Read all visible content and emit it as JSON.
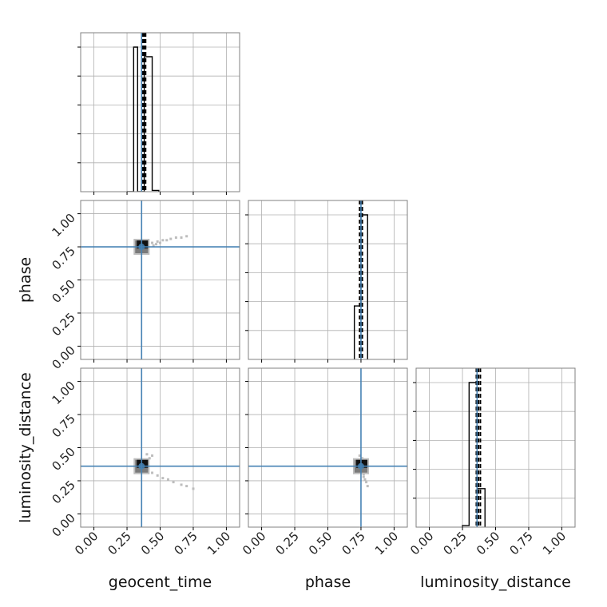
{
  "chart_data": {
    "type": "corner",
    "parameters": [
      "geocent_time",
      "phase",
      "luminosity_distance"
    ],
    "labels": {
      "x": [
        "geocent_time",
        "phase",
        "luminosity_distance"
      ],
      "y": [
        "",
        "phase",
        "luminosity_distance"
      ]
    },
    "tick_labels": [
      "0.00",
      "0.25",
      "0.50",
      "0.75",
      "1.00"
    ],
    "tick_values": [
      0,
      0.25,
      0.5,
      0.75,
      1.0
    ],
    "axis_range": [
      -0.1,
      1.1
    ],
    "truths": {
      "geocent_time": 0.36,
      "phase": 0.75,
      "luminosity_distance": 0.36
    },
    "quantiles": {
      "geocent_time": [
        0.37,
        0.38,
        0.39
      ],
      "phase": [
        0.74,
        0.75,
        0.76
      ],
      "luminosity_distance": [
        0.355,
        0.37,
        0.385
      ]
    },
    "histograms": {
      "geocent_time": {
        "edges": [
          0.25,
          0.3,
          0.33,
          0.38,
          0.44,
          0.49
        ],
        "counts": [
          0,
          0.905,
          0.0,
          0.845,
          0.008
        ]
      },
      "phase": {
        "edges": [
          0.7,
          0.75,
          0.8
        ],
        "counts": [
          0.37,
          1.0
        ]
      },
      "luminosity_distance": {
        "edges": [
          0.25,
          0.3,
          0.36,
          0.42
        ],
        "counts": [
          0.01,
          0.94,
          0.25
        ]
      }
    },
    "scatter": {
      "phase_vs_geocent_time": [
        [
          0.44,
          0.78
        ],
        [
          0.48,
          0.79
        ],
        [
          0.52,
          0.8
        ],
        [
          0.55,
          0.8
        ],
        [
          0.58,
          0.81
        ],
        [
          0.62,
          0.82
        ],
        [
          0.66,
          0.82
        ],
        [
          0.7,
          0.83
        ],
        [
          0.47,
          0.77
        ],
        [
          0.5,
          0.78
        ],
        [
          0.45,
          0.76
        ]
      ],
      "luminosity_distance_vs_geocent_time": [
        [
          0.44,
          0.31
        ],
        [
          0.48,
          0.29
        ],
        [
          0.52,
          0.27
        ],
        [
          0.56,
          0.26
        ],
        [
          0.6,
          0.24
        ],
        [
          0.66,
          0.22
        ],
        [
          0.7,
          0.21
        ],
        [
          0.75,
          0.19
        ],
        [
          0.42,
          0.42
        ],
        [
          0.44,
          0.44
        ],
        [
          0.4,
          0.45
        ]
      ],
      "luminosity_distance_vs_phase": [
        [
          0.77,
          0.3
        ],
        [
          0.77,
          0.28
        ],
        [
          0.78,
          0.26
        ],
        [
          0.79,
          0.24
        ],
        [
          0.8,
          0.21
        ],
        [
          0.76,
          0.32
        ],
        [
          0.78,
          0.33
        ],
        [
          0.76,
          0.42
        ],
        [
          0.74,
          0.44
        ]
      ]
    },
    "grid": true,
    "colors": {
      "truth": "#4682b4",
      "hist": "#000000",
      "density_dark": "#111111",
      "density_mid": "#7a7a7a",
      "density_light": "#bdbdbd",
      "grid": "#b0b0b0",
      "frame": "#808080"
    }
  }
}
